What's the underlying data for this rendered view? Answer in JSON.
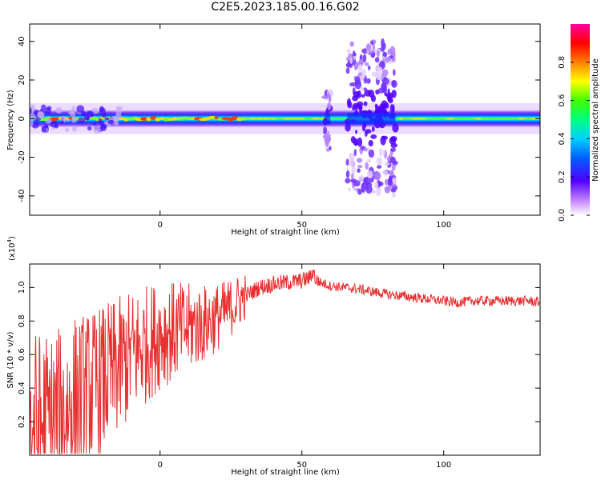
{
  "title": "C2E5.2023.185.00.16.G02",
  "chart_data": [
    {
      "type": "heatmap",
      "xlabel": "Height of straight line (km)",
      "ylabel": "Frequency (Hz)",
      "xlim": [
        -46,
        134
      ],
      "ylim": [
        -50,
        49
      ],
      "xticks": [
        0,
        50,
        100
      ],
      "yticks": [
        40,
        20,
        0,
        -20,
        -40
      ],
      "colorbar": {
        "label": "Normalized spectral amplitude",
        "range": [
          0.0,
          1.0
        ],
        "ticks": [
          0.0,
          0.2,
          0.4,
          0.6,
          0.8
        ]
      },
      "features": [
        {
          "x_range": [
            -46,
            134
          ],
          "center_freq": 0,
          "half_width": 4.5
        },
        {
          "x_range": [
            58,
            60
          ],
          "freq_range": [
            -17,
            17
          ]
        },
        {
          "x_range": [
            66,
            83
          ],
          "freq_range": [
            -40,
            38
          ]
        }
      ]
    },
    {
      "type": "line",
      "xlabel": "Height of straight line (km)",
      "ylabel": "SNR (10 * v/v)",
      "scale_label": "(x10",
      "scale_exp": "4",
      "scale_close": ")",
      "xlim": [
        -46,
        134
      ],
      "ylim": [
        0.0,
        1.14
      ],
      "xticks": [
        0,
        50,
        100
      ],
      "yticks": [
        0.2,
        0.4,
        0.6,
        0.8,
        1.0
      ],
      "ytick_labels": [
        "0.2",
        "0.4",
        "0.6",
        "0.8",
        "1.0"
      ],
      "color": "#e83030",
      "series": [
        {
          "x": [
            -46,
            -40,
            -35,
            -30,
            -25,
            -20,
            -15,
            -10,
            -5,
            0,
            5,
            10,
            15,
            20,
            25,
            30,
            35,
            40,
            45,
            50,
            53,
            54,
            55,
            60,
            70,
            80,
            90,
            95,
            100,
            105,
            110,
            120,
            130,
            134
          ],
          "y": [
            0.15,
            0.18,
            0.22,
            0.33,
            0.38,
            0.45,
            0.52,
            0.6,
            0.66,
            0.72,
            0.74,
            0.76,
            0.78,
            0.82,
            0.88,
            0.95,
            1.0,
            1.02,
            1.03,
            1.04,
            1.06,
            1.1,
            1.04,
            1.01,
            0.99,
            0.96,
            0.94,
            0.93,
            0.92,
            0.91,
            0.92,
            0.92,
            0.92,
            0.91
          ]
        }
      ]
    }
  ]
}
